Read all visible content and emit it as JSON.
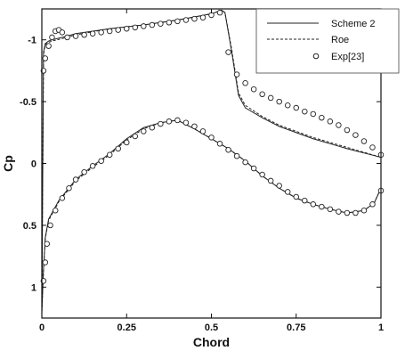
{
  "chart_data": {
    "type": "line",
    "xlabel": "Chord",
    "ylabel": "Cp",
    "xlim": [
      0,
      1
    ],
    "ylim": [
      1.25,
      -1.25
    ],
    "y_axis_inverted": true,
    "x_ticks": [
      0,
      0.25,
      0.5,
      0.75,
      1
    ],
    "x_tick_labels": [
      "0",
      "0.25",
      "0.5",
      "0.75",
      "1"
    ],
    "y_ticks": [
      -1,
      -0.5,
      0,
      0.5,
      1
    ],
    "y_tick_labels": [
      "-1",
      "-0.5",
      "0",
      "0.5",
      "1"
    ],
    "legend_position": "top-right",
    "series": [
      {
        "name": "Scheme 2",
        "style": "solid",
        "surfaces": [
          {
            "x": [
              0,
              0.005,
              0.01,
              0.02,
              0.03,
              0.06,
              0.1,
              0.2,
              0.3,
              0.4,
              0.5,
              0.53,
              0.54,
              0.56,
              0.58,
              0.6,
              0.65,
              0.7,
              0.8,
              0.9,
              1.0
            ],
            "y": [
              1.2,
              -0.9,
              -0.97,
              -0.99,
              -1.0,
              -1.02,
              -1.05,
              -1.09,
              -1.12,
              -1.16,
              -1.21,
              -1.24,
              -1.22,
              -0.9,
              -0.55,
              -0.45,
              -0.37,
              -0.3,
              -0.2,
              -0.12,
              -0.05
            ]
          },
          {
            "x": [
              0,
              0.005,
              0.01,
              0.02,
              0.05,
              0.1,
              0.15,
              0.2,
              0.25,
              0.3,
              0.35,
              0.4,
              0.45,
              0.5,
              0.55,
              0.6,
              0.65,
              0.7,
              0.75,
              0.8,
              0.85,
              0.9,
              0.95,
              0.98,
              1.0
            ],
            "y": [
              1.2,
              0.85,
              0.6,
              0.45,
              0.3,
              0.13,
              0.02,
              -0.08,
              -0.2,
              -0.29,
              -0.33,
              -0.35,
              -0.28,
              -0.2,
              -0.12,
              -0.02,
              0.1,
              0.2,
              0.28,
              0.33,
              0.37,
              0.4,
              0.38,
              0.32,
              0.2
            ]
          }
        ]
      },
      {
        "name": "Roe",
        "style": "dashed",
        "surfaces": [
          {
            "x": [
              0,
              0.005,
              0.01,
              0.02,
              0.03,
              0.06,
              0.1,
              0.2,
              0.3,
              0.4,
              0.5,
              0.53,
              0.54,
              0.56,
              0.58,
              0.6,
              0.65,
              0.7,
              0.8,
              0.9,
              1.0
            ],
            "y": [
              1.2,
              -0.88,
              -0.96,
              -0.98,
              -0.99,
              -1.01,
              -1.04,
              -1.09,
              -1.12,
              -1.16,
              -1.21,
              -1.24,
              -1.22,
              -0.92,
              -0.57,
              -0.47,
              -0.38,
              -0.31,
              -0.21,
              -0.13,
              -0.05
            ]
          },
          {
            "x": [
              0,
              0.005,
              0.01,
              0.02,
              0.05,
              0.1,
              0.15,
              0.2,
              0.25,
              0.3,
              0.35,
              0.4,
              0.45,
              0.5,
              0.55,
              0.6,
              0.65,
              0.7,
              0.75,
              0.8,
              0.85,
              0.9,
              0.95,
              0.98,
              1.0
            ],
            "y": [
              1.2,
              0.86,
              0.61,
              0.46,
              0.31,
              0.14,
              0.03,
              -0.07,
              -0.19,
              -0.28,
              -0.33,
              -0.35,
              -0.28,
              -0.2,
              -0.12,
              -0.02,
              0.1,
              0.2,
              0.28,
              0.33,
              0.37,
              0.4,
              0.38,
              0.32,
              0.2
            ]
          }
        ]
      },
      {
        "name": "Exp[23]",
        "style": "markers",
        "surfaces": [
          {
            "x": [
              0.005,
              0.01,
              0.02,
              0.03,
              0.04,
              0.05,
              0.06,
              0.075,
              0.1,
              0.125,
              0.15,
              0.175,
              0.2,
              0.225,
              0.25,
              0.275,
              0.3,
              0.325,
              0.35,
              0.375,
              0.4,
              0.425,
              0.45,
              0.475,
              0.5,
              0.525,
              0.55,
              0.575,
              0.6,
              0.625,
              0.65,
              0.675,
              0.7,
              0.725,
              0.75,
              0.775,
              0.8,
              0.825,
              0.85,
              0.875,
              0.9,
              0.925,
              0.95,
              0.975,
              1.0
            ],
            "y": [
              -0.75,
              -0.85,
              -0.95,
              -1.02,
              -1.07,
              -1.08,
              -1.06,
              -1.02,
              -1.03,
              -1.04,
              -1.05,
              -1.06,
              -1.07,
              -1.08,
              -1.09,
              -1.1,
              -1.11,
              -1.12,
              -1.13,
              -1.14,
              -1.15,
              -1.16,
              -1.17,
              -1.18,
              -1.2,
              -1.22,
              -0.9,
              -0.72,
              -0.65,
              -0.6,
              -0.56,
              -0.53,
              -0.5,
              -0.47,
              -0.45,
              -0.42,
              -0.4,
              -0.37,
              -0.34,
              -0.31,
              -0.27,
              -0.23,
              -0.18,
              -0.13,
              -0.07
            ]
          },
          {
            "x": [
              0.005,
              0.01,
              0.015,
              0.025,
              0.04,
              0.06,
              0.08,
              0.1,
              0.125,
              0.15,
              0.175,
              0.2,
              0.225,
              0.25,
              0.275,
              0.3,
              0.325,
              0.35,
              0.375,
              0.4,
              0.425,
              0.45,
              0.475,
              0.5,
              0.525,
              0.55,
              0.575,
              0.6,
              0.625,
              0.65,
              0.675,
              0.7,
              0.725,
              0.75,
              0.775,
              0.8,
              0.825,
              0.85,
              0.875,
              0.9,
              0.925,
              0.95,
              0.975,
              1.0
            ],
            "y": [
              0.95,
              0.8,
              0.65,
              0.5,
              0.38,
              0.28,
              0.2,
              0.13,
              0.07,
              0.02,
              -0.02,
              -0.07,
              -0.12,
              -0.17,
              -0.22,
              -0.26,
              -0.29,
              -0.32,
              -0.34,
              -0.35,
              -0.33,
              -0.3,
              -0.26,
              -0.21,
              -0.16,
              -0.11,
              -0.06,
              -0.01,
              0.04,
              0.09,
              0.14,
              0.18,
              0.23,
              0.27,
              0.3,
              0.33,
              0.35,
              0.37,
              0.39,
              0.4,
              0.4,
              0.38,
              0.33,
              0.22
            ]
          }
        ]
      }
    ]
  }
}
